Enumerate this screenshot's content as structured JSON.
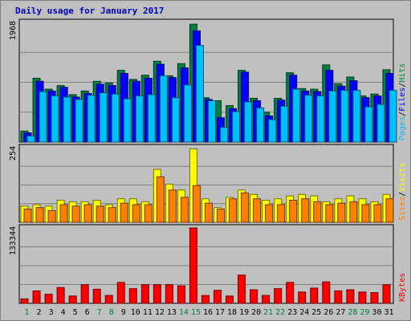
{
  "chart_data": {
    "type": "bar",
    "title": "Daily usage for January 2017",
    "days": [
      "1",
      "2",
      "3",
      "4",
      "5",
      "6",
      "7",
      "8",
      "9",
      "10",
      "11",
      "12",
      "13",
      "14",
      "15",
      "16",
      "17",
      "18",
      "19",
      "20",
      "21",
      "22",
      "23",
      "24",
      "25",
      "26",
      "27",
      "28",
      "29",
      "30",
      "31"
    ],
    "weekend_days": [
      "1",
      "7",
      "8",
      "14",
      "15",
      "21",
      "22",
      "28",
      "29"
    ],
    "panels": [
      {
        "id": "hits",
        "ymax": 1968,
        "ymax_label": "1968",
        "legend": [
          {
            "name": "Pages",
            "color": "#00c0ff"
          },
          {
            "name": "Files",
            "color": "#0000ff"
          },
          {
            "name": "Hits",
            "color": "#008040"
          }
        ],
        "series": [
          {
            "name": "Hits",
            "color": "#008040",
            "values": [
              180,
              1050,
              870,
              930,
              780,
              840,
              1000,
              970,
              1180,
              1030,
              1100,
              1330,
              1090,
              1290,
              1940,
              730,
              680,
              600,
              1180,
              720,
              490,
              720,
              1140,
              880,
              870,
              1270,
              960,
              1070,
              760,
              790,
              1190
            ]
          },
          {
            "name": "Files",
            "color": "#0000ff",
            "values": [
              150,
              1000,
              840,
              900,
              740,
              800,
              950,
              930,
              1130,
              1000,
              1050,
              1280,
              1060,
              1220,
              1830,
              700,
              400,
              550,
              1150,
              680,
              430,
              690,
              1100,
              840,
              830,
              1180,
              920,
              1010,
              730,
              760,
              1130
            ]
          },
          {
            "name": "Pages",
            "color": "#00c0ff",
            "values": [
              100,
              830,
              760,
              740,
              700,
              770,
              810,
              790,
              710,
              760,
              780,
              1090,
              730,
              940,
              1590,
              680,
              240,
              500,
              660,
              560,
              370,
              590,
              870,
              770,
              760,
              840,
              850,
              850,
              580,
              620,
              850
            ]
          }
        ]
      },
      {
        "id": "visits",
        "ymax": 254,
        "ymax_label": "254",
        "legend": [
          {
            "name": "Sites",
            "color": "#ff8000"
          },
          {
            "name": "Visits",
            "color": "#ffff00"
          }
        ],
        "series": [
          {
            "name": "Visits",
            "color": "#ffff00",
            "values": [
              55,
              60,
              55,
              75,
              70,
              70,
              75,
              60,
              80,
              80,
              70,
              180,
              130,
              110,
              250,
              80,
              50,
              85,
              110,
              95,
              75,
              80,
              90,
              95,
              90,
              70,
              80,
              90,
              80,
              70,
              95
            ]
          },
          {
            "name": "Sites",
            "color": "#ff8000",
            "values": [
              45,
              50,
              40,
              60,
              55,
              60,
              55,
              50,
              65,
              60,
              60,
              155,
              110,
              85,
              125,
              65,
              45,
              80,
              100,
              80,
              60,
              60,
              75,
              80,
              70,
              60,
              65,
              70,
              60,
              60,
              80
            ]
          }
        ]
      },
      {
        "id": "kbytes",
        "ymax": 133344,
        "ymax_label": "133344",
        "legend": [
          {
            "name": "KBytes",
            "color": "#ff0000"
          }
        ],
        "series": [
          {
            "name": "KBytes",
            "color": "#ff0000",
            "values": [
              8000,
              22000,
              16000,
              28000,
              13000,
              33000,
              25000,
              14000,
              37000,
              26000,
              33000,
              33000,
              33000,
              31000,
              133344,
              14000,
              23000,
              13000,
              50000,
              24000,
              14000,
              26000,
              37000,
              20000,
              27000,
              38000,
              22000,
              24000,
              20000,
              19000,
              33000
            ]
          }
        ]
      }
    ],
    "separator": "/"
  }
}
